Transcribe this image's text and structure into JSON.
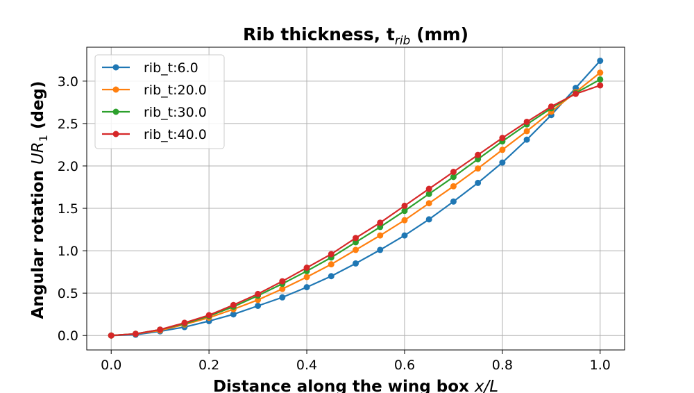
{
  "chart_data": {
    "type": "line",
    "title": "Rib thickness, t",
    "title_subscript": "rib",
    "title_suffix": " (mm)",
    "xlabel": "Distance along the wing box x/L",
    "xlabel_main": "Distance along the wing box ",
    "xlabel_var": "x/L",
    "ylabel": "Angular rotation UR1 (deg)",
    "ylabel_main": "Angular rotation ",
    "ylabel_var": "UR",
    "ylabel_sub": "1",
    "ylabel_suffix": " (deg)",
    "xlim": [
      -0.05,
      1.05
    ],
    "ylim": [
      -0.17,
      3.4
    ],
    "xticks": [
      "0.0",
      "0.2",
      "0.4",
      "0.6",
      "0.8",
      "1.0"
    ],
    "yticks": [
      "0.0",
      "0.5",
      "1.0",
      "1.5",
      "2.0",
      "2.5",
      "3.0"
    ],
    "grid": true,
    "legend_position": "top-left",
    "x": [
      0.0,
      0.05,
      0.1,
      0.15,
      0.2,
      0.25,
      0.3,
      0.35,
      0.4,
      0.45,
      0.5,
      0.55,
      0.6,
      0.65,
      0.7,
      0.75,
      0.8,
      0.85,
      0.9,
      0.95,
      1.0
    ],
    "series": [
      {
        "name": "rib_t:6.0",
        "color": "#1f77b4",
        "values": [
          0.0,
          0.01,
          0.05,
          0.1,
          0.17,
          0.25,
          0.35,
          0.45,
          0.57,
          0.7,
          0.85,
          1.01,
          1.18,
          1.37,
          1.58,
          1.8,
          2.04,
          2.31,
          2.6,
          2.92,
          3.24
        ]
      },
      {
        "name": "rib_t:20.0",
        "color": "#ff7f0e",
        "values": [
          0.0,
          0.02,
          0.06,
          0.13,
          0.21,
          0.31,
          0.42,
          0.55,
          0.69,
          0.84,
          1.01,
          1.18,
          1.36,
          1.56,
          1.76,
          1.97,
          2.19,
          2.41,
          2.64,
          2.87,
          3.1
        ]
      },
      {
        "name": "rib_t:30.0",
        "color": "#2ca02c",
        "values": [
          0.0,
          0.02,
          0.07,
          0.14,
          0.23,
          0.34,
          0.47,
          0.61,
          0.76,
          0.92,
          1.1,
          1.28,
          1.47,
          1.67,
          1.87,
          2.08,
          2.29,
          2.49,
          2.68,
          2.86,
          3.02
        ]
      },
      {
        "name": "rib_t:40.0",
        "color": "#d62728",
        "values": [
          0.0,
          0.02,
          0.07,
          0.15,
          0.24,
          0.36,
          0.49,
          0.64,
          0.8,
          0.96,
          1.15,
          1.33,
          1.53,
          1.73,
          1.93,
          2.13,
          2.33,
          2.52,
          2.7,
          2.85,
          2.95
        ]
      }
    ]
  }
}
